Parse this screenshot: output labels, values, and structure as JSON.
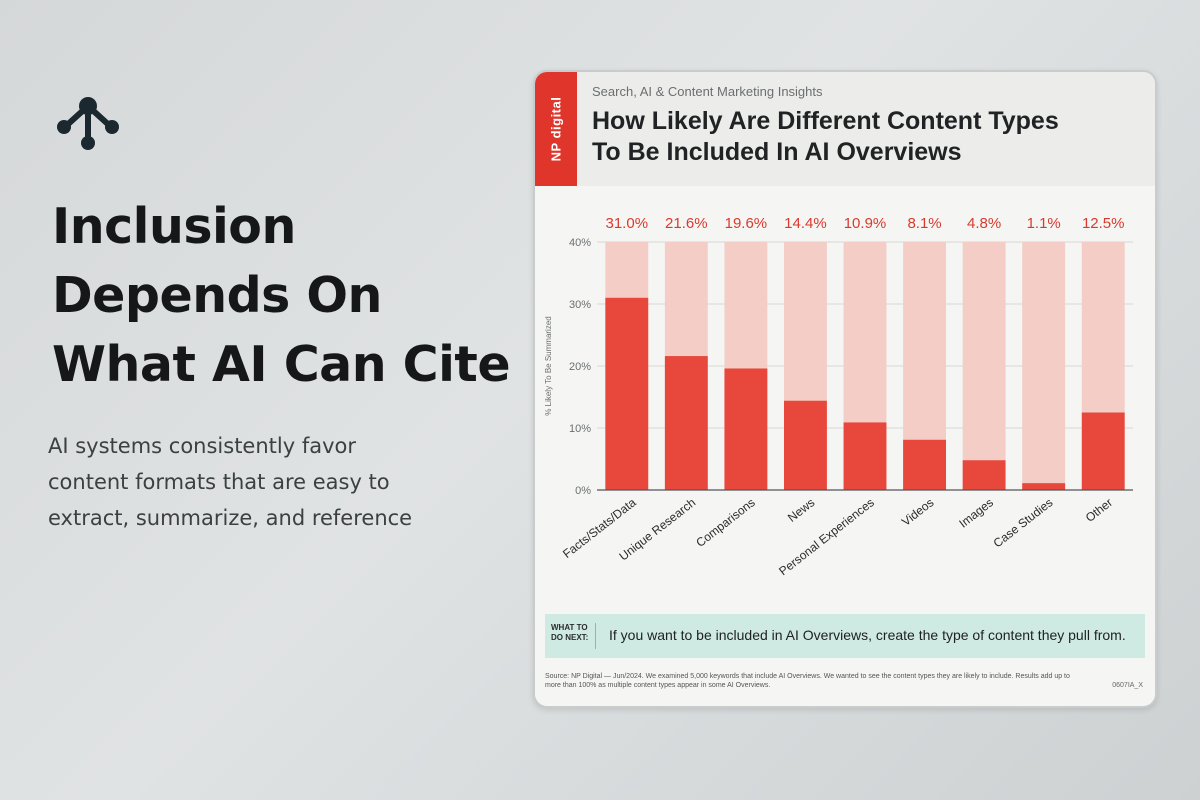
{
  "slide": {
    "icon": "network-nodes-icon",
    "headline_lines": [
      "Inclusion",
      "Depends On",
      "What AI Can Cite"
    ],
    "body_lines": [
      "AI systems consistently favor",
      "content formats that are easy to",
      "extract, summarize, and reference"
    ]
  },
  "card": {
    "brand_tag": "NP digital",
    "kicker": "Search, AI & Content Marketing Insights",
    "title_lines": [
      "How Likely Are Different Content Types",
      "To Be Included In AI Overviews"
    ],
    "what_next_label_lines": [
      "WHAT TO",
      "DO NEXT:"
    ],
    "what_next_text": "If you want to be included in AI Overviews, create the type of content they pull from.",
    "source": "Source: NP Digital — Jun/2024. We examined 5,000 keywords that include AI Overviews. We wanted to see the content types they are likely to include. Results add up to more than 100% as multiple content types appear in some AI Overviews.",
    "code": "0607IA_X"
  },
  "colors": {
    "brand_red": "#e0352b",
    "bar_fill": "#e8483c",
    "bar_track": "#f3cdc6",
    "value_label": "#d93a2e",
    "teal_box": "#cfe9e3"
  },
  "chart_data": {
    "type": "bar",
    "title": "How Likely Are Different Content Types To Be Included In AI Overviews",
    "ylabel": "% Likely To Be Summarized",
    "xlabel": "",
    "ylim": [
      0,
      40
    ],
    "yticks": [
      "0%",
      "10%",
      "20%",
      "30%",
      "40%"
    ],
    "categories": [
      "Facts/Stats/Data",
      "Unique Research",
      "Comparisons",
      "News",
      "Personal Experiences",
      "Videos",
      "Images",
      "Case Studies",
      "Other"
    ],
    "values": [
      31.0,
      21.6,
      19.6,
      14.4,
      10.9,
      8.1,
      4.8,
      1.1,
      12.5
    ],
    "value_labels": [
      "31.0%",
      "21.6%",
      "19.6%",
      "14.4%",
      "10.9%",
      "8.1%",
      "4.8%",
      "1.1%",
      "12.5%"
    ],
    "grid": true
  }
}
